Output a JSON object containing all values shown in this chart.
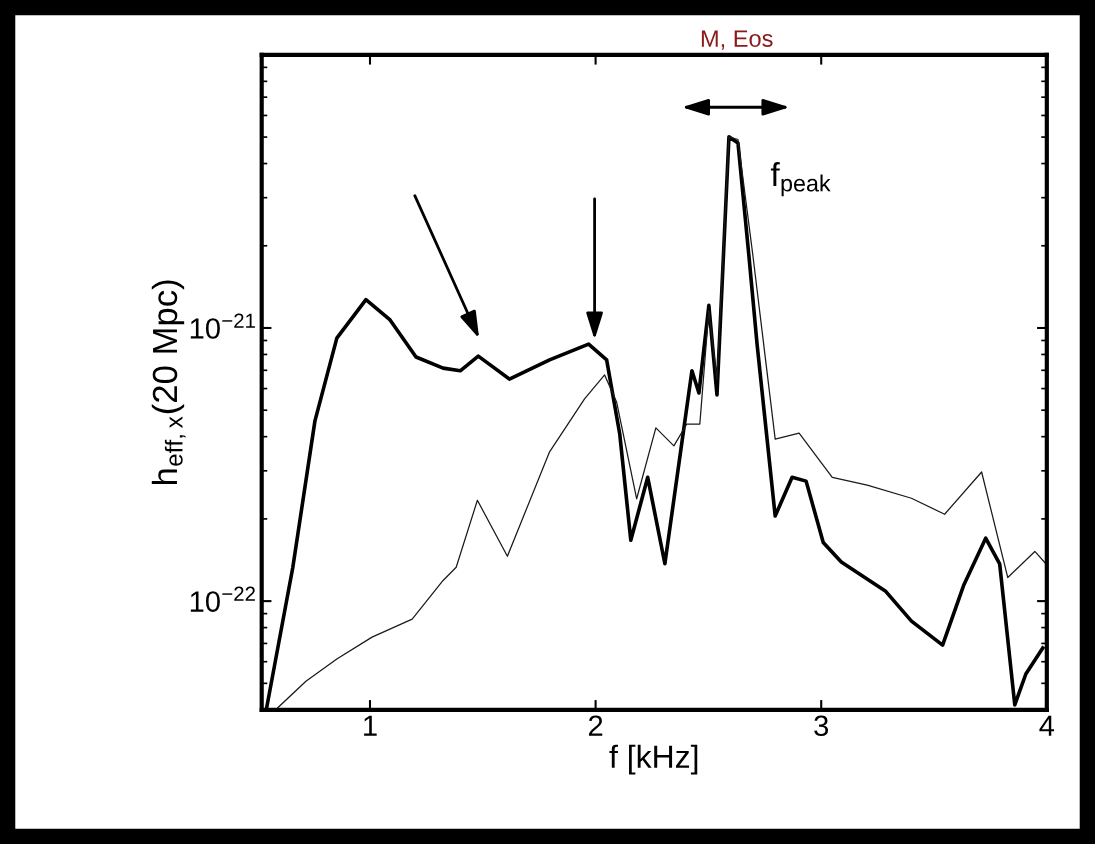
{
  "chart_data": {
    "type": "line",
    "xlabel": "f [kHz]",
    "ylabel": "h$_{eff,x}$(20 Mpc)",
    "log": "y",
    "grid": false,
    "marker": "none",
    "line_style": "solid",
    "xlim": [
      0.52,
      4
    ],
    "xticks": [
      1,
      2,
      3,
      4
    ],
    "ylim": [
      4e-23,
      1e-20
    ],
    "yticks": [
      {
        "value": 1e-22,
        "label": "10$^{−22}$"
      },
      {
        "value": 1e-21,
        "label": "10$^{−21}$"
      }
    ],
    "series": [
      {
        "color": "#000000",
        "x": [
          0.542,
          0.658,
          0.756,
          0.853,
          0.982,
          1.089,
          1.204,
          1.324,
          1.4,
          1.48,
          1.618,
          1.796,
          1.969,
          2.049,
          2.107,
          2.156,
          2.231,
          2.307,
          2.427,
          2.458,
          2.502,
          2.538,
          2.591,
          2.631,
          2.68,
          2.716,
          2.796,
          2.871,
          2.933,
          3.009,
          3.089,
          3.284,
          3.4,
          3.538,
          3.631,
          3.729,
          3.791,
          3.858,
          3.907,
          3.982
        ],
        "values": [
          4.07e-23,
          1.33e-22,
          4.57e-22,
          9.18e-22,
          1.27e-21,
          1.07e-21,
          7.83e-22,
          7.13e-22,
          6.97e-22,
          7.89e-22,
          6.5e-22,
          7.64e-22,
          8.73e-22,
          7.64e-22,
          4.09e-22,
          1.67e-22,
          2.84e-22,
          1.37e-22,
          6.97e-22,
          5.78e-22,
          1.21e-21,
          5.69e-22,
          5.01e-21,
          4.76e-21,
          1.82e-21,
          8.67e-22,
          2.05e-22,
          2.84e-22,
          2.75e-22,
          1.64e-22,
          1.39e-22,
          1.09e-22,
          8.45e-23,
          6.9e-23,
          1.14e-22,
          1.7e-22,
          1.37e-22,
          4.17e-23,
          5.41e-23,
          6.73e-23
        ]
      },
      {
        "color": "#1a1a1a",
        "x": [
          0.591,
          0.716,
          0.853,
          1.009,
          1.187,
          1.324,
          1.382,
          1.476,
          1.609,
          1.796,
          1.951,
          2.04,
          2.093,
          2.182,
          2.267,
          2.347,
          2.404,
          2.462,
          2.502,
          2.538,
          2.591,
          2.631,
          2.698,
          2.796,
          2.902,
          3.049,
          3.204,
          3.4,
          3.547,
          3.711,
          3.827,
          3.947,
          3.996
        ],
        "values": [
          4.07e-23,
          5.09e-23,
          6.14e-23,
          7.38e-23,
          8.59e-23,
          1.19e-22,
          1.33e-22,
          2.34e-22,
          1.46e-22,
          3.52e-22,
          5.5e-22,
          6.73e-22,
          5.36e-22,
          2.37e-22,
          4.31e-22,
          3.7e-22,
          4.45e-22,
          4.45e-22,
          1.16e-21,
          6.46e-22,
          5.01e-21,
          4.9e-21,
          1.82e-21,
          3.92e-22,
          4.12e-22,
          2.84e-22,
          2.66e-22,
          2.38e-22,
          2.08e-22,
          2.97e-22,
          1.22e-22,
          1.52e-22,
          1.37e-22
        ]
      }
    ],
    "annotations": [
      "M, Eos",
      "f$_{peak}$"
    ]
  }
}
